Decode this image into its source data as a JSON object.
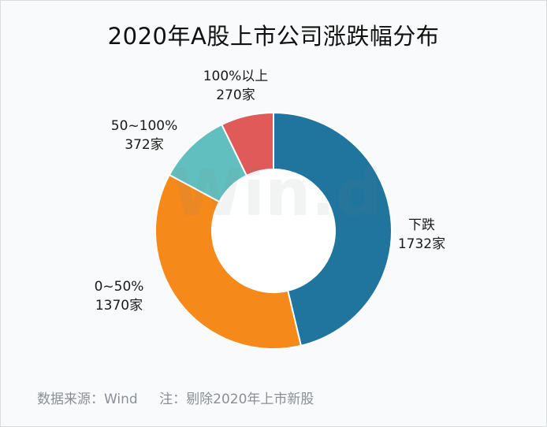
{
  "chart_data": {
    "type": "pie",
    "title": "2020年A股上市公司涨跌幅分布",
    "slices": [
      {
        "label": "下跌",
        "value_text": "1732家",
        "value": 1732,
        "color": "#20759f"
      },
      {
        "label": "0~50%",
        "value_text": "1370家",
        "value": 1370,
        "color": "#f5891a"
      },
      {
        "label": "50~100%",
        "value_text": "372家",
        "value": 372,
        "color": "#62bfbf"
      },
      {
        "label": "100%以上",
        "value_text": "270家",
        "value": 270,
        "color": "#e05a5a"
      }
    ],
    "donut": true,
    "start_angle_deg": 0,
    "direction": "clockwise"
  },
  "footer": {
    "source": "数据来源：Wind",
    "note": "注：剔除2020年上市新股"
  },
  "watermark": {
    "text": "Win.d"
  }
}
